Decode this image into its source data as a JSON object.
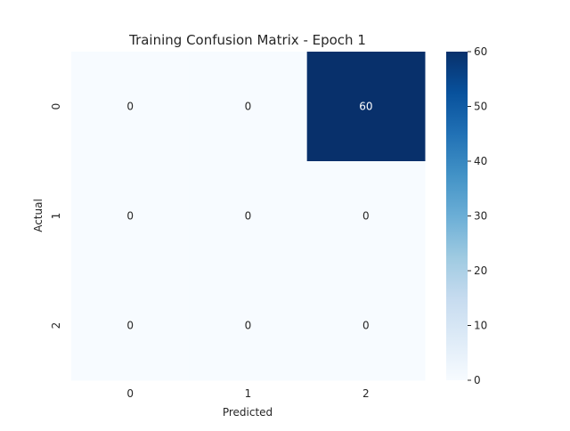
{
  "chart_data": {
    "type": "heatmap",
    "title": "Training Confusion Matrix - Epoch 1",
    "xlabel": "Predicted",
    "ylabel": "Actual",
    "x_categories": [
      "0",
      "1",
      "2"
    ],
    "y_categories": [
      "0",
      "1",
      "2"
    ],
    "values": [
      [
        0,
        0,
        60
      ],
      [
        0,
        0,
        0
      ],
      [
        0,
        0,
        0
      ]
    ],
    "colorbar": {
      "min": 0,
      "max": 60,
      "ticks": [
        0,
        10,
        20,
        30,
        40,
        50,
        60
      ],
      "colormap": "Blues",
      "low_color": "#f7fbff",
      "high_color": "#08306b"
    },
    "annotate": true,
    "grid": false
  }
}
